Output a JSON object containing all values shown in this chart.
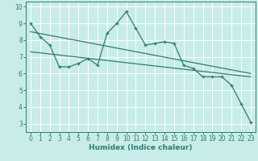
{
  "title": "",
  "xlabel": "Humidex (Indice chaleur)",
  "background_color": "#c8ecea",
  "line_color": "#2e7d6e",
  "xlim": [
    -0.5,
    23.5
  ],
  "ylim": [
    2.5,
    10.3
  ],
  "yticks": [
    3,
    4,
    5,
    6,
    7,
    8,
    9,
    10
  ],
  "xticks": [
    0,
    1,
    2,
    3,
    4,
    5,
    6,
    7,
    8,
    9,
    10,
    11,
    12,
    13,
    14,
    15,
    16,
    17,
    18,
    19,
    20,
    21,
    22,
    23
  ],
  "series1_x": [
    0,
    1,
    2,
    3,
    4,
    5,
    6,
    7,
    8,
    9,
    10,
    11,
    12,
    13,
    14,
    15,
    16,
    17,
    18,
    19,
    20,
    21,
    22,
    23
  ],
  "series1_y": [
    9.0,
    8.2,
    7.7,
    6.4,
    6.4,
    6.6,
    6.9,
    6.5,
    8.4,
    9.0,
    9.7,
    8.7,
    7.7,
    7.8,
    7.9,
    7.8,
    6.5,
    6.3,
    5.8,
    5.8,
    5.8,
    5.3,
    4.2,
    3.1
  ],
  "series2_x": [
    0,
    23
  ],
  "series2_y": [
    8.5,
    6.0
  ],
  "series3_x": [
    0,
    23
  ],
  "series3_y": [
    7.3,
    5.8
  ],
  "grid_color": "#ffffff",
  "spine_color": "#2e7d6e",
  "tick_fontsize": 5.5,
  "xlabel_fontsize": 6.5
}
